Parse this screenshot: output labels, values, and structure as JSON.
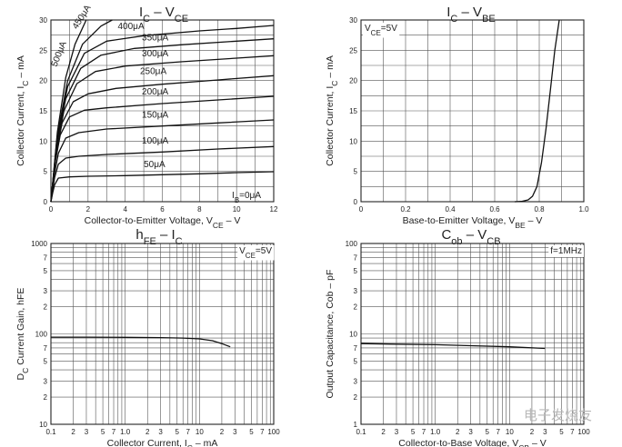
{
  "chart_data": [
    {
      "id": "ic-vce",
      "type": "line",
      "title": "IC – VCE",
      "xlabel": "Collector-to-Emitter Voltage, VCE – V",
      "ylabel": "Collector Current, IC – mA",
      "xlim": [
        0,
        12
      ],
      "ylim": [
        0,
        30
      ],
      "x_ticks": [
        0,
        2,
        4,
        6,
        8,
        10,
        12
      ],
      "y_ticks": [
        0,
        5,
        10,
        15,
        20,
        25,
        30
      ],
      "grid": true,
      "annotations": [
        "IB=0μA"
      ],
      "series": [
        {
          "name": "50μA",
          "values": [
            [
              0,
              0
            ],
            [
              0.1,
              1.5
            ],
            [
              0.2,
              2.8
            ],
            [
              0.4,
              3.9
            ],
            [
              1,
              4.1
            ],
            [
              2,
              4.2
            ],
            [
              4,
              4.3
            ],
            [
              6,
              4.45
            ],
            [
              8,
              4.6
            ],
            [
              10,
              4.8
            ],
            [
              12,
              4.95
            ]
          ]
        },
        {
          "name": "100μA",
          "values": [
            [
              0,
              0
            ],
            [
              0.1,
              2
            ],
            [
              0.2,
              4
            ],
            [
              0.4,
              6.2
            ],
            [
              0.8,
              7.2
            ],
            [
              1.5,
              7.5
            ],
            [
              3,
              7.8
            ],
            [
              6,
              8.2
            ],
            [
              9,
              8.7
            ],
            [
              12,
              9.1
            ]
          ]
        },
        {
          "name": "150μA",
          "values": [
            [
              0,
              0
            ],
            [
              0.15,
              4
            ],
            [
              0.4,
              8
            ],
            [
              0.8,
              10.5
            ],
            [
              1.5,
              11.4
            ],
            [
              3,
              12
            ],
            [
              6,
              12.5
            ],
            [
              9,
              13
            ],
            [
              12,
              13.5
            ]
          ]
        },
        {
          "name": "200μA",
          "values": [
            [
              0,
              0
            ],
            [
              0.2,
              6
            ],
            [
              0.5,
              11
            ],
            [
              1,
              14
            ],
            [
              1.8,
              15.1
            ],
            [
              3,
              15.5
            ],
            [
              6,
              16.2
            ],
            [
              9,
              16.8
            ],
            [
              12,
              17.4
            ]
          ]
        },
        {
          "name": "250μA",
          "values": [
            [
              0,
              0
            ],
            [
              0.25,
              7.5
            ],
            [
              0.6,
              13
            ],
            [
              1.2,
              16.5
            ],
            [
              2,
              17.8
            ],
            [
              3.5,
              18.7
            ],
            [
              6,
              19.4
            ],
            [
              9,
              20.1
            ],
            [
              12,
              20.8
            ]
          ]
        },
        {
          "name": "300μA",
          "values": [
            [
              0,
              0
            ],
            [
              0.3,
              8.5
            ],
            [
              0.7,
              15
            ],
            [
              1.4,
              19.5
            ],
            [
              2.4,
              21.5
            ],
            [
              4,
              22.4
            ],
            [
              7,
              23.1
            ],
            [
              10,
              23.7
            ],
            [
              12,
              24.1
            ]
          ]
        },
        {
          "name": "350μA",
          "values": [
            [
              0,
              0
            ],
            [
              0.3,
              9.5
            ],
            [
              0.8,
              17
            ],
            [
              1.6,
              22
            ],
            [
              2.7,
              24.2
            ],
            [
              4.5,
              25.3
            ],
            [
              7,
              25.9
            ],
            [
              10,
              26.5
            ],
            [
              12,
              26.9
            ]
          ]
        },
        {
          "name": "400μA",
          "values": [
            [
              0,
              0
            ],
            [
              0.35,
              10.5
            ],
            [
              0.9,
              19
            ],
            [
              1.8,
              24.5
            ],
            [
              3,
              26.5
            ],
            [
              5,
              27.4
            ],
            [
              8,
              28.2
            ],
            [
              10,
              28.6
            ],
            [
              12,
              29.1
            ]
          ]
        },
        {
          "name": "450μA",
          "values": [
            [
              0,
              0
            ],
            [
              0.35,
              11
            ],
            [
              0.9,
              20
            ],
            [
              1.7,
              26
            ],
            [
              2.7,
              29
            ],
            [
              3.3,
              30
            ]
          ]
        },
        {
          "name": "500μA",
          "values": [
            [
              0,
              0
            ],
            [
              0.35,
              11.5
            ],
            [
              0.8,
              20.5
            ],
            [
              1.3,
              26
            ],
            [
              1.9,
              30
            ]
          ]
        }
      ]
    },
    {
      "id": "ic-vbe",
      "type": "line",
      "title": "IC – VBE",
      "xlabel": "Base-to-Emitter Voltage, VBE – V",
      "ylabel": "Collector Current, IC – mA",
      "xlim": [
        0,
        1.0
      ],
      "ylim": [
        0,
        30
      ],
      "x_ticks": [
        0,
        0.2,
        0.4,
        0.6,
        0.8,
        1.0
      ],
      "y_ticks": [
        0,
        5,
        10,
        15,
        20,
        25,
        30
      ],
      "grid": true,
      "annotations": [
        "VCE=5V"
      ],
      "series": [
        {
          "values": [
            [
              0.69,
              0
            ],
            [
              0.72,
              0.05
            ],
            [
              0.75,
              0.3
            ],
            [
              0.77,
              0.9
            ],
            [
              0.79,
              2.5
            ],
            [
              0.81,
              6.5
            ],
            [
              0.83,
              12
            ],
            [
              0.85,
              18.5
            ],
            [
              0.87,
              25
            ],
            [
              0.89,
              30
            ]
          ]
        }
      ]
    },
    {
      "id": "hfe-ic",
      "type": "line",
      "title": "hFE – IC",
      "xlabel": "Collector Current, IC – mA",
      "ylabel": "DC Current Gain, hFE",
      "xlim": [
        0.1,
        100
      ],
      "ylim": [
        10,
        1000
      ],
      "x_scale": "log",
      "y_scale": "log",
      "x_ticks": [
        0.1,
        1.0,
        10,
        100
      ],
      "y_ticks": [
        10,
        100,
        1000
      ],
      "grid": true,
      "annotations": [
        "VCE=5V"
      ],
      "series": [
        {
          "values": [
            [
              0.1,
              92
            ],
            [
              0.3,
              92
            ],
            [
              1,
              91.5
            ],
            [
              3,
              91
            ],
            [
              6,
              90
            ],
            [
              10,
              88
            ],
            [
              15,
              84
            ],
            [
              20,
              78
            ],
            [
              26,
              72
            ]
          ]
        }
      ]
    },
    {
      "id": "cob-vcb",
      "type": "line",
      "title": "Cob – VCB",
      "xlabel": "Collector-to-Base Voltage, VCB – V",
      "ylabel": "Output Capacitance, Cob – pF",
      "xlim": [
        0.1,
        100
      ],
      "ylim": [
        1,
        100
      ],
      "x_scale": "log",
      "y_scale": "log",
      "x_ticks": [
        0.1,
        1.0,
        10,
        100
      ],
      "y_ticks": [
        1,
        10,
        100
      ],
      "grid": true,
      "annotations": [
        "f=1MHz"
      ],
      "series": [
        {
          "values": [
            [
              0.1,
              7.8
            ],
            [
              0.3,
              7.7
            ],
            [
              1,
              7.6
            ],
            [
              3,
              7.4
            ],
            [
              10,
              7.2
            ],
            [
              30,
              6.9
            ]
          ]
        }
      ]
    }
  ],
  "watermark": "电子发烧友"
}
